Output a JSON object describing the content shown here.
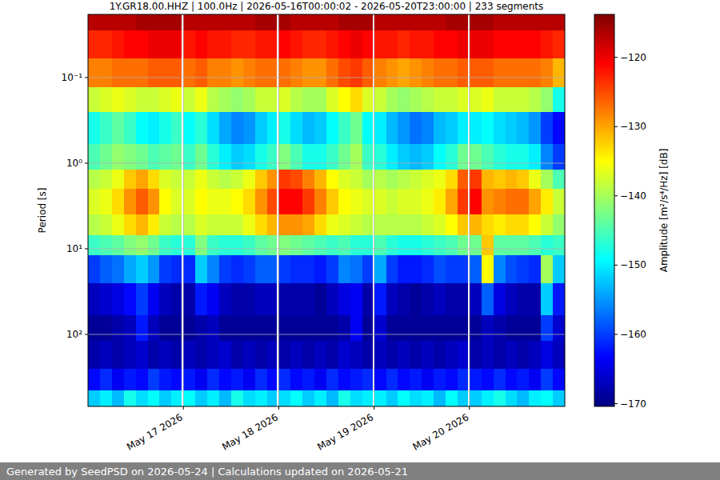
{
  "chart_data": {
    "type": "heatmap",
    "title": "1Y.GR18.00.HHZ | 100.0Hz | 2026-05-16T00:00:02 - 2026-05-20T23:00:00 | 233 segments",
    "y_label": "Period [s]",
    "footer": "Generated by SeedPSD on 2026-05-24 | Calculations updated on 2026-05-21",
    "log": "y",
    "grid": true,
    "color": "jet",
    "xlim": [
      "2026-05-16T00:00",
      "2026-05-21T00:00"
    ],
    "xticks": [
      {
        "value": "2026-05-17T00:00",
        "label": "May 17 2026"
      },
      {
        "value": "2026-05-18T00:00",
        "label": "May 18 2026"
      },
      {
        "value": "2026-05-19T00:00",
        "label": "May 19 2026"
      },
      {
        "value": "2026-05-20T00:00",
        "label": "May 20 2026"
      }
    ],
    "ylim": [
      693,
      0.0183
    ],
    "yticks": [
      {
        "value": 0.1,
        "label": "10⁻¹"
      },
      {
        "value": 1,
        "label": "10⁰"
      },
      {
        "value": 10,
        "label": "10¹"
      },
      {
        "value": 100,
        "label": "10²"
      }
    ],
    "x_bins": [
      "2026-05-16T00:00",
      "2026-05-16T03:00",
      "2026-05-16T06:00",
      "2026-05-16T09:00",
      "2026-05-16T12:00",
      "2026-05-16T15:00",
      "2026-05-16T18:00",
      "2026-05-16T21:00",
      "2026-05-16T23:30",
      "2026-05-17T00:00",
      "2026-05-17T03:00",
      "2026-05-17T06:00",
      "2026-05-17T09:00",
      "2026-05-17T12:00",
      "2026-05-17T15:00",
      "2026-05-17T18:00",
      "2026-05-17T21:00",
      "2026-05-17T23:30",
      "2026-05-18T00:00",
      "2026-05-18T03:00",
      "2026-05-18T06:00",
      "2026-05-18T09:00",
      "2026-05-18T12:00",
      "2026-05-18T15:00",
      "2026-05-18T18:00",
      "2026-05-18T21:00",
      "2026-05-18T23:30",
      "2026-05-19T00:00",
      "2026-05-19T03:00",
      "2026-05-19T06:00",
      "2026-05-19T09:00",
      "2026-05-19T12:00",
      "2026-05-19T15:00",
      "2026-05-19T18:00",
      "2026-05-19T21:00",
      "2026-05-19T23:30",
      "2026-05-20T00:00",
      "2026-05-20T03:00",
      "2026-05-20T06:00",
      "2026-05-20T09:00",
      "2026-05-20T12:00",
      "2026-05-20T15:00",
      "2026-05-20T18:00",
      "2026-05-20T21:00",
      "2026-05-21T00:00"
    ],
    "y_bins": [
      0.0183,
      0.028,
      0.06,
      0.13,
      0.25,
      0.6,
      1.2,
      2,
      4,
      7,
      12,
      25,
      60,
      120,
      250,
      450,
      693
    ],
    "values": [
      [
        -117,
        -117,
        -117,
        -117,
        -116,
        -116,
        -116,
        -116,
        null,
        -117,
        -117,
        -117,
        -117,
        -117,
        -117,
        -116,
        -116,
        null,
        -116,
        -117,
        -117,
        -117,
        -117,
        -116,
        -116,
        -116,
        null,
        -117,
        -117,
        -117,
        -117,
        -117,
        -117,
        -116,
        -116,
        null,
        -116,
        -116,
        -117,
        -117,
        -117,
        -117,
        -117,
        -117
      ],
      [
        -123,
        -123,
        -122,
        -121,
        -121,
        -120,
        -120,
        -120,
        null,
        -122,
        -121,
        -122,
        -122,
        -123,
        -123,
        -122,
        -122,
        null,
        -121,
        -122,
        -123,
        -123,
        -122,
        -121,
        -120,
        -121,
        null,
        -122,
        -122,
        -123,
        -122,
        -122,
        -121,
        -121,
        -120,
        null,
        -120,
        -120,
        -121,
        -121,
        -121,
        -121,
        -122,
        -123
      ],
      [
        -128,
        -128,
        -127,
        -127,
        -127,
        -126,
        -126,
        -126,
        null,
        -127,
        -126,
        -128,
        -128,
        -129,
        -128,
        -127,
        -127,
        null,
        -127,
        -128,
        -129,
        -129,
        -127,
        -125,
        -124,
        -126,
        null,
        -128,
        -129,
        -130,
        -129,
        -128,
        -127,
        -127,
        -126,
        null,
        -126,
        -126,
        -127,
        -127,
        -127,
        -127,
        -128,
        -131
      ],
      [
        -138,
        -137,
        -136,
        -137,
        -138,
        -138,
        -137,
        -136,
        null,
        -138,
        -136,
        -139,
        -140,
        -141,
        -140,
        -138,
        -138,
        null,
        -137,
        -139,
        -140,
        -140,
        -137,
        -135,
        -133,
        -137,
        null,
        -138,
        -140,
        -141,
        -140,
        -139,
        -138,
        -138,
        -137,
        null,
        -137,
        -136,
        -138,
        -138,
        -138,
        -139,
        -141,
        -148
      ],
      [
        -148,
        -146,
        -144,
        -146,
        -149,
        -150,
        -148,
        -146,
        null,
        -149,
        -147,
        -151,
        -154,
        -156,
        -155,
        -152,
        -150,
        null,
        -148,
        -151,
        -153,
        -152,
        -149,
        -146,
        -143,
        -149,
        null,
        -150,
        -153,
        -155,
        -157,
        -156,
        -153,
        -152,
        -150,
        null,
        -150,
        -149,
        -151,
        -152,
        -153,
        -155,
        -160,
        -163
      ],
      [
        -145,
        -143,
        -141,
        -142,
        -143,
        -145,
        -144,
        -143,
        null,
        -146,
        -143,
        -147,
        -150,
        -152,
        -151,
        -148,
        -146,
        null,
        -142,
        -145,
        -148,
        -148,
        -146,
        -143,
        -140,
        -146,
        null,
        -147,
        -150,
        -152,
        -153,
        -152,
        -149,
        -147,
        -143,
        null,
        -143,
        -145,
        -147,
        -148,
        -148,
        -150,
        -156,
        -160
      ],
      [
        -139,
        -138,
        -136,
        -132,
        -130,
        -133,
        -137,
        -138,
        null,
        -138,
        -136,
        -138,
        -139,
        -138,
        -136,
        -132,
        -129,
        null,
        -124,
        -125,
        -128,
        -131,
        -135,
        -137,
        -138,
        -140,
        null,
        -139,
        -140,
        -139,
        -138,
        -137,
        -136,
        -133,
        -126,
        null,
        -124,
        -131,
        -132,
        -131,
        -132,
        -136,
        -140,
        -145
      ],
      [
        -137,
        -136,
        -133,
        -129,
        -126,
        -129,
        -135,
        -137,
        null,
        -137,
        -135,
        -136,
        -136,
        -135,
        -133,
        -129,
        -125,
        null,
        -121,
        -121,
        -124,
        -128,
        -132,
        -135,
        -136,
        -137,
        null,
        -137,
        -138,
        -137,
        -137,
        -136,
        -134,
        -130,
        -124,
        null,
        -121,
        -129,
        -128,
        -127,
        -127,
        -130,
        -134,
        -138
      ],
      [
        -139,
        -138,
        -136,
        -133,
        -131,
        -134,
        -138,
        -139,
        null,
        -139,
        -137,
        -138,
        -138,
        -138,
        -136,
        -133,
        -131,
        null,
        -129,
        -129,
        -130,
        -133,
        -136,
        -137,
        -138,
        -139,
        null,
        -139,
        -139,
        -139,
        -139,
        -138,
        -137,
        -135,
        -132,
        null,
        -131,
        -133,
        -134,
        -133,
        -133,
        -135,
        -138,
        -141
      ],
      [
        -146,
        -145,
        -144,
        -142,
        -141,
        -143,
        -146,
        -147,
        null,
        -147,
        -142,
        -146,
        -147,
        -147,
        -146,
        -144,
        -143,
        null,
        -142,
        -143,
        -144,
        -145,
        -146,
        -145,
        -147,
        -147,
        null,
        -145,
        -147,
        -148,
        -148,
        -147,
        -146,
        -145,
        -143,
        null,
        -143,
        -132,
        -144,
        -144,
        -144,
        -145,
        -147,
        -146
      ],
      [
        -160,
        -158,
        -157,
        -154,
        -152,
        -155,
        -160,
        -161,
        null,
        -161,
        -152,
        -156,
        -160,
        -161,
        -160,
        -158,
        -158,
        null,
        -160,
        -161,
        -161,
        -162,
        -160,
        -156,
        -157,
        -160,
        null,
        -154,
        -160,
        -162,
        -162,
        -161,
        -159,
        -160,
        -160,
        null,
        -158,
        -135,
        -156,
        -159,
        -160,
        -161,
        -140,
        -152
      ],
      [
        -167,
        -166,
        -165,
        -163,
        -160,
        -164,
        -167,
        -168,
        null,
        -168,
        -162,
        -164,
        -167,
        -168,
        -168,
        -167,
        -167,
        null,
        -168,
        -168,
        -168,
        -169,
        -167,
        -165,
        -164,
        -168,
        null,
        -162,
        -167,
        -168,
        -169,
        -168,
        -167,
        -168,
        -168,
        null,
        -167,
        -158,
        -165,
        -167,
        -168,
        -168,
        -152,
        -162
      ],
      [
        -169,
        -169,
        -168,
        -167,
        -162,
        -167,
        -169,
        -169,
        null,
        -169,
        -168,
        -167,
        -169,
        -169,
        -169,
        -169,
        -169,
        null,
        -169,
        -169,
        -169,
        -169,
        -169,
        -168,
        -164,
        -169,
        null,
        -166,
        -169,
        -169,
        -169,
        -169,
        -169,
        -169,
        -169,
        null,
        -169,
        -167,
        -168,
        -169,
        -169,
        -169,
        -160,
        -166
      ],
      [
        -168,
        -167,
        -168,
        -167,
        -166,
        -168,
        -167,
        -168,
        null,
        -167,
        -168,
        -167,
        -166,
        -168,
        -167,
        -168,
        -167,
        null,
        -168,
        -167,
        -168,
        -167,
        -168,
        -166,
        -167,
        -168,
        null,
        -167,
        -168,
        -167,
        -168,
        -167,
        -168,
        -167,
        -166,
        null,
        -168,
        -167,
        -168,
        -167,
        -168,
        -167,
        -165,
        -167
      ],
      [
        -163,
        -161,
        -164,
        -162,
        -163,
        -160,
        -162,
        -163,
        null,
        -162,
        -164,
        -161,
        -163,
        -162,
        -164,
        -161,
        -163,
        null,
        -161,
        -163,
        -162,
        -164,
        -161,
        -163,
        -162,
        -161,
        null,
        -163,
        -161,
        -163,
        -162,
        -164,
        -162,
        -163,
        -161,
        null,
        -162,
        -163,
        -161,
        -163,
        -162,
        -164,
        -160,
        -163
      ],
      [
        -152,
        -150,
        -153,
        -148,
        -151,
        -149,
        -152,
        -150,
        null,
        -149,
        -152,
        -150,
        -153,
        -148,
        -151,
        -150,
        -152,
        null,
        -151,
        -149,
        -152,
        -150,
        -153,
        -148,
        -151,
        -150,
        null,
        -150,
        -152,
        -149,
        -151,
        -150,
        -153,
        -149,
        -152,
        null,
        -152,
        -150,
        -148,
        -151,
        -153,
        -150,
        -149,
        -152
      ]
    ],
    "colorbar": {
      "label": "Amplitude [m²/s⁴/Hz] [dB]",
      "range": [
        -170.4,
        -113.8
      ],
      "ticks": [
        {
          "value": -170,
          "label": "−170"
        },
        {
          "value": -160,
          "label": "−160"
        },
        {
          "value": -150,
          "label": "−150"
        },
        {
          "value": -140,
          "label": "−140"
        },
        {
          "value": -130,
          "label": "−130"
        },
        {
          "value": -120,
          "label": "−120"
        }
      ]
    }
  }
}
